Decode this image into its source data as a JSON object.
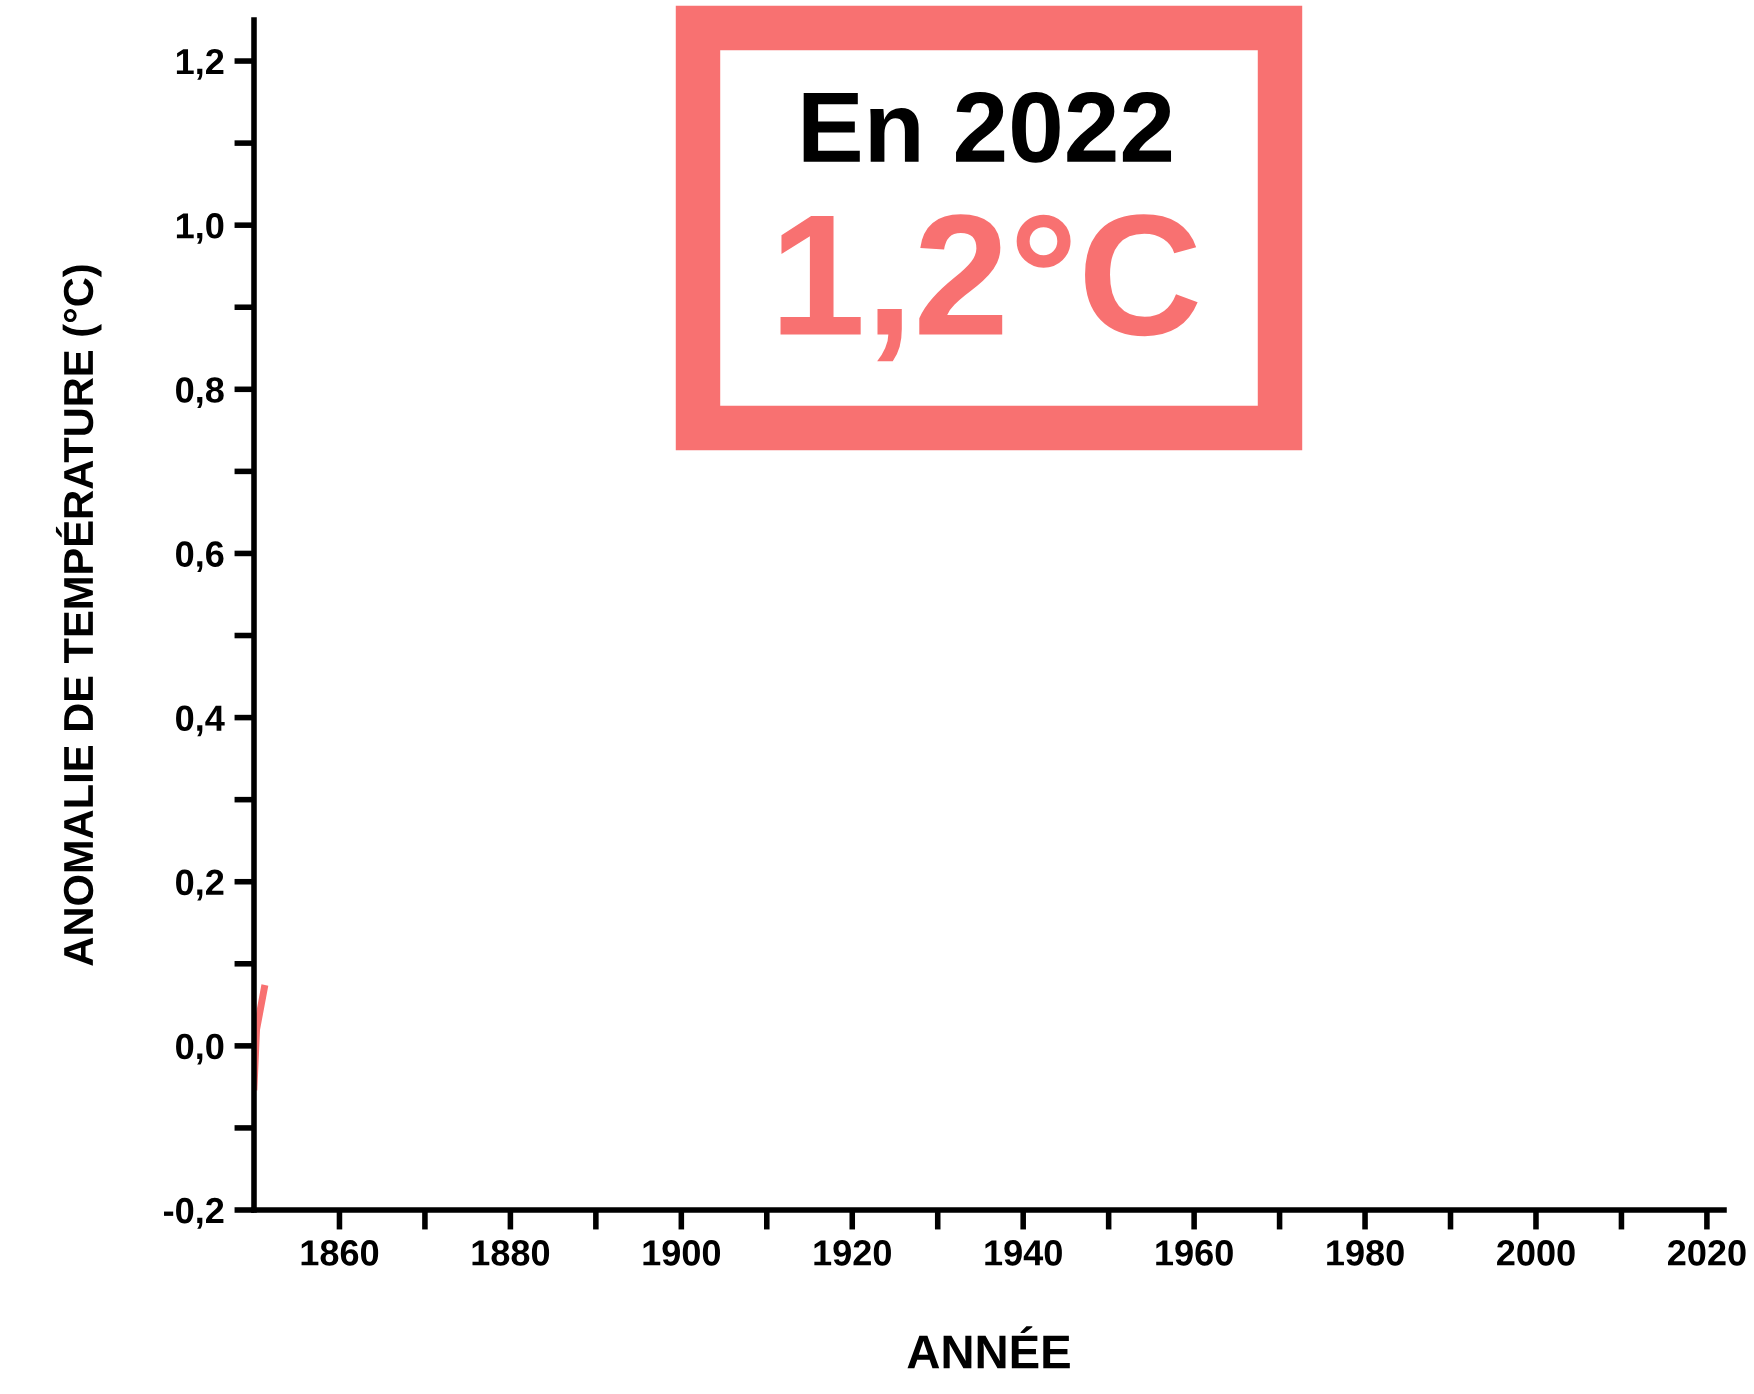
{
  "chart_data": {
    "type": "line",
    "xlabel": "ANNÉE",
    "ylabel": "ANOMALIE DE TEMPÉRATURE (°C)",
    "annotations": [
      "En 2022",
      "1,2°C"
    ],
    "series": [
      {
        "color": "#f87171",
        "x": [
          1850,
          1850.3,
          1851.2
        ],
        "values": [
          -0.05,
          0.02,
          0.07
        ]
      }
    ],
    "xlim": [
      1850,
      2022
    ],
    "ylim": [
      -0.2,
      1.25
    ],
    "xticks": [
      {
        "value": 1860,
        "label": "1860"
      },
      {
        "value": 1870,
        "label": null
      },
      {
        "value": 1880,
        "label": "1880"
      },
      {
        "value": 1890,
        "label": null
      },
      {
        "value": 1900,
        "label": "1900"
      },
      {
        "value": 1910,
        "label": null
      },
      {
        "value": 1920,
        "label": "1920"
      },
      {
        "value": 1930,
        "label": null
      },
      {
        "value": 1940,
        "label": "1940"
      },
      {
        "value": 1950,
        "label": null
      },
      {
        "value": 1960,
        "label": "1960"
      },
      {
        "value": 1970,
        "label": null
      },
      {
        "value": 1980,
        "label": "1980"
      },
      {
        "value": 1990,
        "label": null
      },
      {
        "value": 2000,
        "label": "2000"
      },
      {
        "value": 2010,
        "label": null
      },
      {
        "value": 2020,
        "label": "2020"
      }
    ],
    "yticks": [
      {
        "value": -0.2,
        "label": "-0,2"
      },
      {
        "value": -0.1,
        "label": null
      },
      {
        "value": 0,
        "label": "0,0"
      },
      {
        "value": 0.1,
        "label": null
      },
      {
        "value": 0.2,
        "label": "0,2"
      },
      {
        "value": 0.3,
        "label": null
      },
      {
        "value": 0.4,
        "label": "0,4"
      },
      {
        "value": 0.5,
        "label": null
      },
      {
        "value": 0.6,
        "label": "0,6"
      },
      {
        "value": 0.7,
        "label": null
      },
      {
        "value": 0.8,
        "label": "0,8"
      },
      {
        "value": 0.9,
        "label": null
      },
      {
        "value": 1.0,
        "label": "1,0"
      },
      {
        "value": 1.1,
        "label": null
      },
      {
        "value": 1.2,
        "label": "1,2"
      }
    ],
    "grid": false,
    "legend": false,
    "marker": "none",
    "line_style": "solid"
  }
}
